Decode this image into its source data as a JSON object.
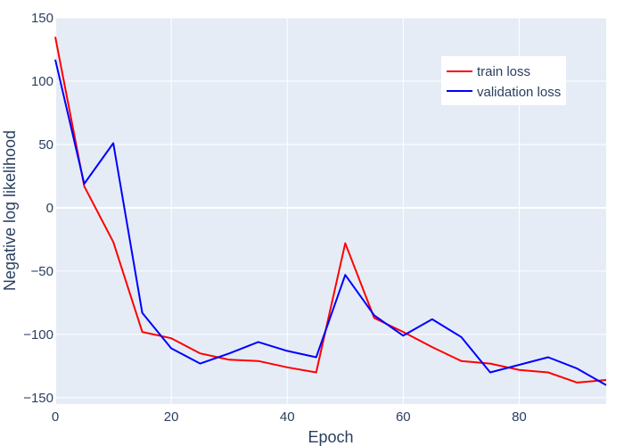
{
  "chart_data": {
    "type": "line",
    "xlabel": "Epoch",
    "ylabel": "Negative log likelihood",
    "xlim": [
      0,
      95
    ],
    "ylim": [
      -155,
      150
    ],
    "x_ticks": [
      0,
      20,
      40,
      60,
      80
    ],
    "y_ticks": [
      -150,
      -100,
      -50,
      0,
      50,
      100,
      150
    ],
    "grid": true,
    "legend_position": "top-right",
    "background_color": "#e5ecf6",
    "grid_color": "#ffffff",
    "series": [
      {
        "name": "train loss",
        "color": "#ff0000",
        "x": [
          0,
          5,
          10,
          15,
          20,
          25,
          30,
          35,
          40,
          45,
          50,
          55,
          60,
          65,
          70,
          75,
          80,
          85,
          90,
          95
        ],
        "y": [
          135,
          17,
          -27,
          -98,
          -103,
          -115,
          -120,
          -121,
          -126,
          -130,
          -28,
          -87,
          -98,
          -110,
          -121,
          -123,
          -128,
          -130,
          -138,
          -136
        ]
      },
      {
        "name": "validation loss",
        "color": "#0000ff",
        "x": [
          0,
          5,
          10,
          15,
          20,
          25,
          30,
          35,
          40,
          45,
          50,
          55,
          60,
          65,
          70,
          75,
          80,
          85,
          90,
          95
        ],
        "y": [
          117,
          19,
          51,
          -83,
          -111,
          -123,
          -115,
          -106,
          -113,
          -118,
          -53,
          -85,
          -101,
          -88,
          -102,
          -130,
          -124,
          -118,
          -127,
          -140
        ]
      }
    ]
  }
}
